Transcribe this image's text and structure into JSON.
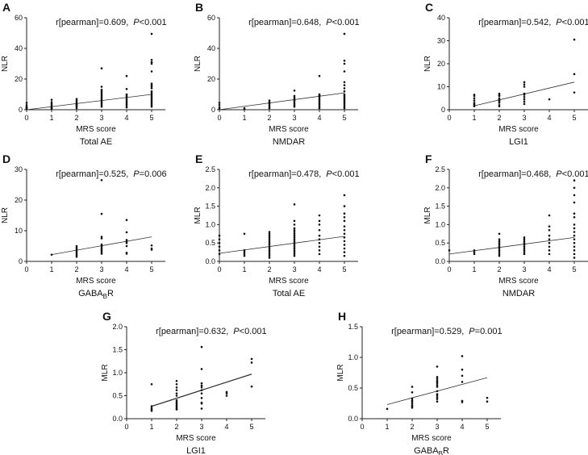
{
  "colors": {
    "points": "#111111",
    "axis": "#222222",
    "fit_line": "#333333"
  },
  "chart_data": [
    {
      "id": "A",
      "type": "scatter",
      "ylabel": "NLR",
      "xlabel": "MRS score",
      "subtitle": "Total AE",
      "subtitle_sub": "",
      "subtitle_end": "",
      "r_text": "r[pearman]=0.609,",
      "p_label": "P",
      "p_value": "<0.001",
      "xlim": [
        0,
        5
      ],
      "ylim": [
        0,
        60
      ],
      "xticks": [
        "0",
        "1",
        "2",
        "3",
        "4",
        "5"
      ],
      "yticks": [
        0,
        20,
        40,
        60
      ],
      "ytick_labels": [
        "0",
        "20",
        "40",
        "60"
      ],
      "fit": [
        [
          0,
          0
        ],
        [
          5,
          10
        ]
      ],
      "points": [
        [
          0,
          [
            0.5,
            1,
            1.5,
            2,
            3,
            4.5
          ]
        ],
        [
          1,
          [
            0.5,
            1,
            1.5,
            2,
            3,
            4,
            5,
            6.5
          ]
        ],
        [
          2,
          [
            1,
            2,
            2.5,
            3,
            3.5,
            4,
            5,
            6,
            7
          ]
        ],
        [
          3,
          [
            2,
            3,
            4,
            5,
            6,
            7,
            8,
            9,
            10,
            11,
            12,
            13,
            15,
            27
          ]
        ],
        [
          4,
          [
            1.5,
            2.5,
            3.5,
            4.5,
            5.5,
            6.5,
            7.5,
            8.5,
            9.5,
            10,
            13.5,
            22
          ]
        ],
        [
          5,
          [
            2,
            3,
            4,
            5,
            6,
            7,
            8,
            9,
            10,
            11,
            12,
            14,
            15,
            16,
            17,
            25,
            30,
            31,
            32.5,
            49.5
          ]
        ]
      ]
    },
    {
      "id": "B",
      "type": "scatter",
      "ylabel": "NLR",
      "xlabel": "MRS score",
      "subtitle": "NMDAR",
      "subtitle_sub": "",
      "subtitle_end": "",
      "r_text": "r[pearman]=0.648,",
      "p_label": "P",
      "p_value": "<0.001",
      "xlim": [
        0,
        5
      ],
      "ylim": [
        0,
        60
      ],
      "xticks": [
        "0",
        "1",
        "2",
        "3",
        "4",
        "5"
      ],
      "yticks": [
        0,
        20,
        40,
        60
      ],
      "ytick_labels": [
        "0",
        "20",
        "40",
        "60"
      ],
      "fit": [
        [
          0,
          0
        ],
        [
          5,
          11
        ]
      ],
      "points": [
        [
          0,
          [
            0.5,
            1.5,
            3,
            4.5
          ]
        ],
        [
          1,
          [
            0.5,
            1
          ]
        ],
        [
          2,
          [
            1,
            2,
            3,
            4,
            5,
            6
          ]
        ],
        [
          3,
          [
            2,
            3,
            4,
            5,
            6,
            7,
            8,
            9,
            12.5
          ]
        ],
        [
          4,
          [
            1,
            2,
            3,
            4,
            5,
            6,
            7,
            8,
            9,
            9.5,
            10,
            22
          ]
        ],
        [
          5,
          [
            1,
            2,
            3,
            4,
            5,
            6,
            7,
            8,
            9,
            10,
            12,
            14,
            16,
            18,
            25,
            30,
            32,
            49.5
          ]
        ]
      ]
    },
    {
      "id": "C",
      "type": "scatter",
      "ylabel": "NLR",
      "xlabel": "MRS score",
      "subtitle": "LGI1",
      "subtitle_sub": "",
      "subtitle_end": "",
      "r_text": "r[pearman]=0.542,",
      "p_label": "P",
      "p_value": "<0.001",
      "xlim": [
        0,
        5
      ],
      "ylim": [
        0,
        40
      ],
      "xticks": [
        "0",
        "1",
        "2",
        "3",
        "4",
        "5"
      ],
      "yticks": [
        0,
        10,
        20,
        30,
        40
      ],
      "ytick_labels": [
        "0",
        "10",
        "20",
        "30",
        "40"
      ],
      "fit": [
        [
          1,
          1.7
        ],
        [
          5,
          12
        ]
      ],
      "points": [
        [
          1,
          [
            1.5,
            2,
            2.5,
            3,
            4,
            5,
            6,
            6.5
          ]
        ],
        [
          2,
          [
            1.5,
            2,
            3,
            3.5,
            4,
            4.5,
            5,
            6,
            6.5,
            7
          ]
        ],
        [
          3,
          [
            2.5,
            3.5,
            4.5,
            5.5,
            6.5,
            7,
            10,
            11,
            12
          ]
        ],
        [
          4,
          [
            4.5
          ]
        ],
        [
          5,
          [
            7.5,
            15.5,
            30.5
          ]
        ]
      ]
    },
    {
      "id": "D",
      "type": "scatter",
      "ylabel": "NLR",
      "xlabel": "MRS score",
      "subtitle": "GABA",
      "subtitle_sub": "B",
      "subtitle_end": "R",
      "r_text": "r[pearman]=0.525,",
      "p_label": "P",
      "p_value": "=0.006",
      "xlim": [
        0,
        5
      ],
      "ylim": [
        0,
        30
      ],
      "xticks": [
        "0",
        "1",
        "2",
        "3",
        "4",
        "5"
      ],
      "yticks": [
        0,
        10,
        20,
        30
      ],
      "ytick_labels": [
        "0",
        "10",
        "20",
        "30"
      ],
      "fit": [
        [
          1,
          2.2
        ],
        [
          5,
          8
        ]
      ],
      "points": [
        [
          1,
          [
            2.2
          ]
        ],
        [
          2,
          [
            1.5,
            2,
            2.5,
            3,
            3.5,
            4,
            4.5,
            5
          ]
        ],
        [
          3,
          [
            2.5,
            3,
            3.5,
            4,
            4.5,
            5,
            5.5,
            7.5,
            8,
            15.5,
            26.5
          ]
        ],
        [
          4,
          [
            2.5,
            2.8,
            5,
            6,
            6.5,
            7,
            9.5,
            13.5
          ]
        ],
        [
          5,
          [
            3.8,
            4.2,
            5.2
          ]
        ]
      ]
    },
    {
      "id": "E",
      "type": "scatter",
      "ylabel": "MLR",
      "xlabel": "MRS score",
      "subtitle": "Total AE",
      "subtitle_sub": "",
      "subtitle_end": "",
      "r_text": "r[pearman]=0.478,",
      "p_label": "P",
      "p_value": "<0.001",
      "xlim": [
        0,
        5
      ],
      "ylim": [
        0,
        2.5
      ],
      "xticks": [
        "0",
        "1",
        "2",
        "3",
        "4",
        "5"
      ],
      "yticks": [
        0,
        0.5,
        1,
        1.5,
        2,
        2.5
      ],
      "ytick_labels": [
        "0.0",
        "0.5",
        "1.0",
        "1.5",
        "2.0",
        "2.5"
      ],
      "fit": [
        [
          0,
          0.22
        ],
        [
          5,
          0.68
        ]
      ],
      "points": [
        [
          0,
          [
            0.2,
            0.3,
            0.4,
            0.5,
            0.6,
            0.7
          ]
        ],
        [
          1,
          [
            0.15,
            0.2,
            0.25,
            0.3,
            0.75
          ]
        ],
        [
          2,
          [
            0.1,
            0.15,
            0.2,
            0.25,
            0.3,
            0.35,
            0.4,
            0.45,
            0.5,
            0.55,
            0.6,
            0.65,
            0.7,
            0.75,
            0.8
          ]
        ],
        [
          3,
          [
            0.15,
            0.2,
            0.25,
            0.3,
            0.35,
            0.4,
            0.45,
            0.5,
            0.55,
            0.6,
            0.65,
            0.7,
            0.75,
            0.8,
            0.85,
            0.9,
            1.0,
            1.1,
            1.55
          ]
        ],
        [
          4,
          [
            0.2,
            0.3,
            0.4,
            0.5,
            0.6,
            0.7,
            0.85,
            1.0,
            1.1,
            1.25
          ]
        ],
        [
          5,
          [
            0.15,
            0.25,
            0.35,
            0.45,
            0.55,
            0.65,
            0.75,
            0.85,
            0.95,
            1.1,
            1.2,
            1.3,
            1.5,
            1.8
          ]
        ]
      ]
    },
    {
      "id": "F",
      "type": "scatter",
      "ylabel": "MLR",
      "xlabel": "MRS score",
      "subtitle": "NMDAR",
      "subtitle_sub": "",
      "subtitle_end": "",
      "r_text": "r[pearman]=0.468,",
      "p_label": "P",
      "p_value": "<0.001",
      "xlim": [
        0,
        5
      ],
      "ylim": [
        0,
        2.5
      ],
      "xticks": [
        "0",
        "1",
        "2",
        "3",
        "4",
        "5"
      ],
      "yticks": [
        0,
        0.5,
        1,
        1.5,
        2,
        2.5
      ],
      "ytick_labels": [
        "0.0",
        "0.5",
        "1.0",
        "1.5",
        "2.0",
        "2.5"
      ],
      "fit": [
        [
          0,
          0.2
        ],
        [
          5,
          0.65
        ]
      ],
      "points": [
        [
          0,
          [
            0.3
          ]
        ],
        [
          1,
          [
            0.2,
            0.25,
            0.3
          ]
        ],
        [
          2,
          [
            0.15,
            0.2,
            0.25,
            0.3,
            0.35,
            0.4,
            0.45,
            0.5,
            0.55,
            0.6,
            0.75
          ]
        ],
        [
          3,
          [
            0.2,
            0.25,
            0.3,
            0.35,
            0.4,
            0.45,
            0.5,
            0.55,
            0.6,
            0.65
          ]
        ],
        [
          4,
          [
            0.2,
            0.3,
            0.4,
            0.5,
            0.6,
            0.7,
            0.85,
            0.95,
            1.25
          ]
        ],
        [
          5,
          [
            0.1,
            0.2,
            0.3,
            0.4,
            0.5,
            0.6,
            0.7,
            0.8,
            0.9,
            1.0,
            1.2,
            1.3,
            1.6,
            1.8,
            2.0,
            2.2
          ]
        ]
      ]
    },
    {
      "id": "G",
      "type": "scatter",
      "ylabel": "MLR",
      "xlabel": "MRS score",
      "subtitle": "LGI1",
      "subtitle_sub": "",
      "subtitle_end": "",
      "r_text": "r[pearman]=0.632,",
      "p_label": "P",
      "p_value": "<0.001",
      "xlim": [
        0,
        5
      ],
      "ylim": [
        0,
        2
      ],
      "xticks": [
        "0",
        "1",
        "2",
        "3",
        "4",
        "5"
      ],
      "yticks": [
        0,
        0.5,
        1,
        1.5,
        2
      ],
      "ytick_labels": [
        "0.0",
        "0.5",
        "1.0",
        "1.5",
        "2.0"
      ],
      "fit": [
        [
          1,
          0.27
        ],
        [
          5,
          0.97
        ]
      ],
      "points": [
        [
          1,
          [
            0.17,
            0.2,
            0.23,
            0.27,
            0.75
          ]
        ],
        [
          2,
          [
            0.2,
            0.22,
            0.25,
            0.28,
            0.3,
            0.33,
            0.36,
            0.4,
            0.5,
            0.55,
            0.62,
            0.68,
            0.75,
            0.82
          ]
        ],
        [
          3,
          [
            0.22,
            0.33,
            0.35,
            0.45,
            0.55,
            0.62,
            0.68,
            0.72,
            0.77,
            1.08,
            1.56
          ]
        ],
        [
          4,
          [
            0.5,
            0.55,
            0.58
          ]
        ],
        [
          5,
          [
            0.7,
            1.22,
            1.3
          ]
        ]
      ]
    },
    {
      "id": "H",
      "type": "scatter",
      "ylabel": "MLR",
      "xlabel": "MRS score",
      "subtitle": "GABA",
      "subtitle_sub": "B",
      "subtitle_end": "R",
      "r_text": "r[pearman]=0.529,",
      "p_label": "P",
      "p_value": "=0.001",
      "xlim": [
        0,
        5
      ],
      "ylim": [
        0,
        1.5
      ],
      "xticks": [
        "0",
        "1",
        "2",
        "3",
        "4",
        "5"
      ],
      "yticks": [
        0,
        0.5,
        1,
        1.5
      ],
      "ytick_labels": [
        "0.0",
        "0.5",
        "1.0",
        "1.5"
      ],
      "fit": [
        [
          1,
          0.23
        ],
        [
          5,
          0.67
        ]
      ],
      "points": [
        [
          1,
          [
            0.16
          ]
        ],
        [
          2,
          [
            0.18,
            0.2,
            0.22,
            0.25,
            0.28,
            0.3,
            0.33,
            0.43,
            0.52
          ]
        ],
        [
          3,
          [
            0.28,
            0.32,
            0.35,
            0.38,
            0.4,
            0.45,
            0.52,
            0.55,
            0.58,
            0.6,
            0.62,
            0.65,
            0.68,
            0.85
          ]
        ],
        [
          4,
          [
            0.27,
            0.29,
            0.6,
            0.7,
            0.8,
            1.02
          ]
        ],
        [
          5,
          [
            0.28,
            0.34
          ]
        ]
      ]
    }
  ]
}
